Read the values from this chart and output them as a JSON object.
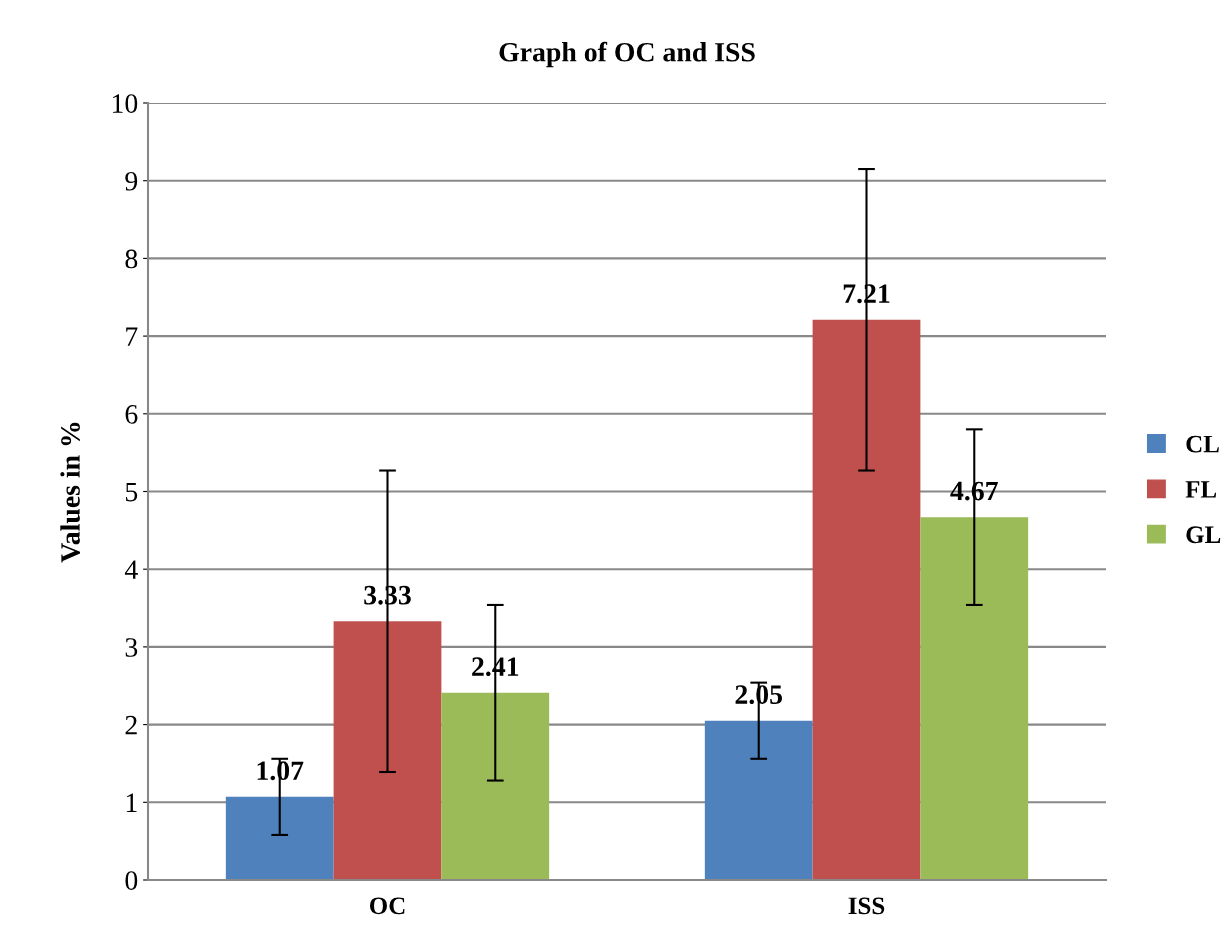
{
  "chart_data": {
    "type": "bar",
    "title": "Graph of OC and ISS",
    "ylabel": "Values in %",
    "categories": [
      "OC",
      "ISS"
    ],
    "series": [
      {
        "name": "CL",
        "color": "#4f81bd",
        "values": [
          1.07,
          2.05
        ],
        "errors": [
          0.49,
          0.49
        ]
      },
      {
        "name": "FL",
        "color": "#c0504d",
        "values": [
          3.33,
          7.21
        ],
        "errors": [
          1.94,
          1.94
        ]
      },
      {
        "name": "GL",
        "color": "#9bbb59",
        "values": [
          2.41,
          4.67
        ],
        "errors": [
          1.13,
          1.13
        ]
      }
    ],
    "ylim": [
      0,
      10
    ],
    "yticks": [
      0,
      1,
      2,
      3,
      4,
      5,
      6,
      7,
      8,
      9,
      10
    ],
    "grid": "y",
    "legend": "right",
    "data_labels": true
  }
}
